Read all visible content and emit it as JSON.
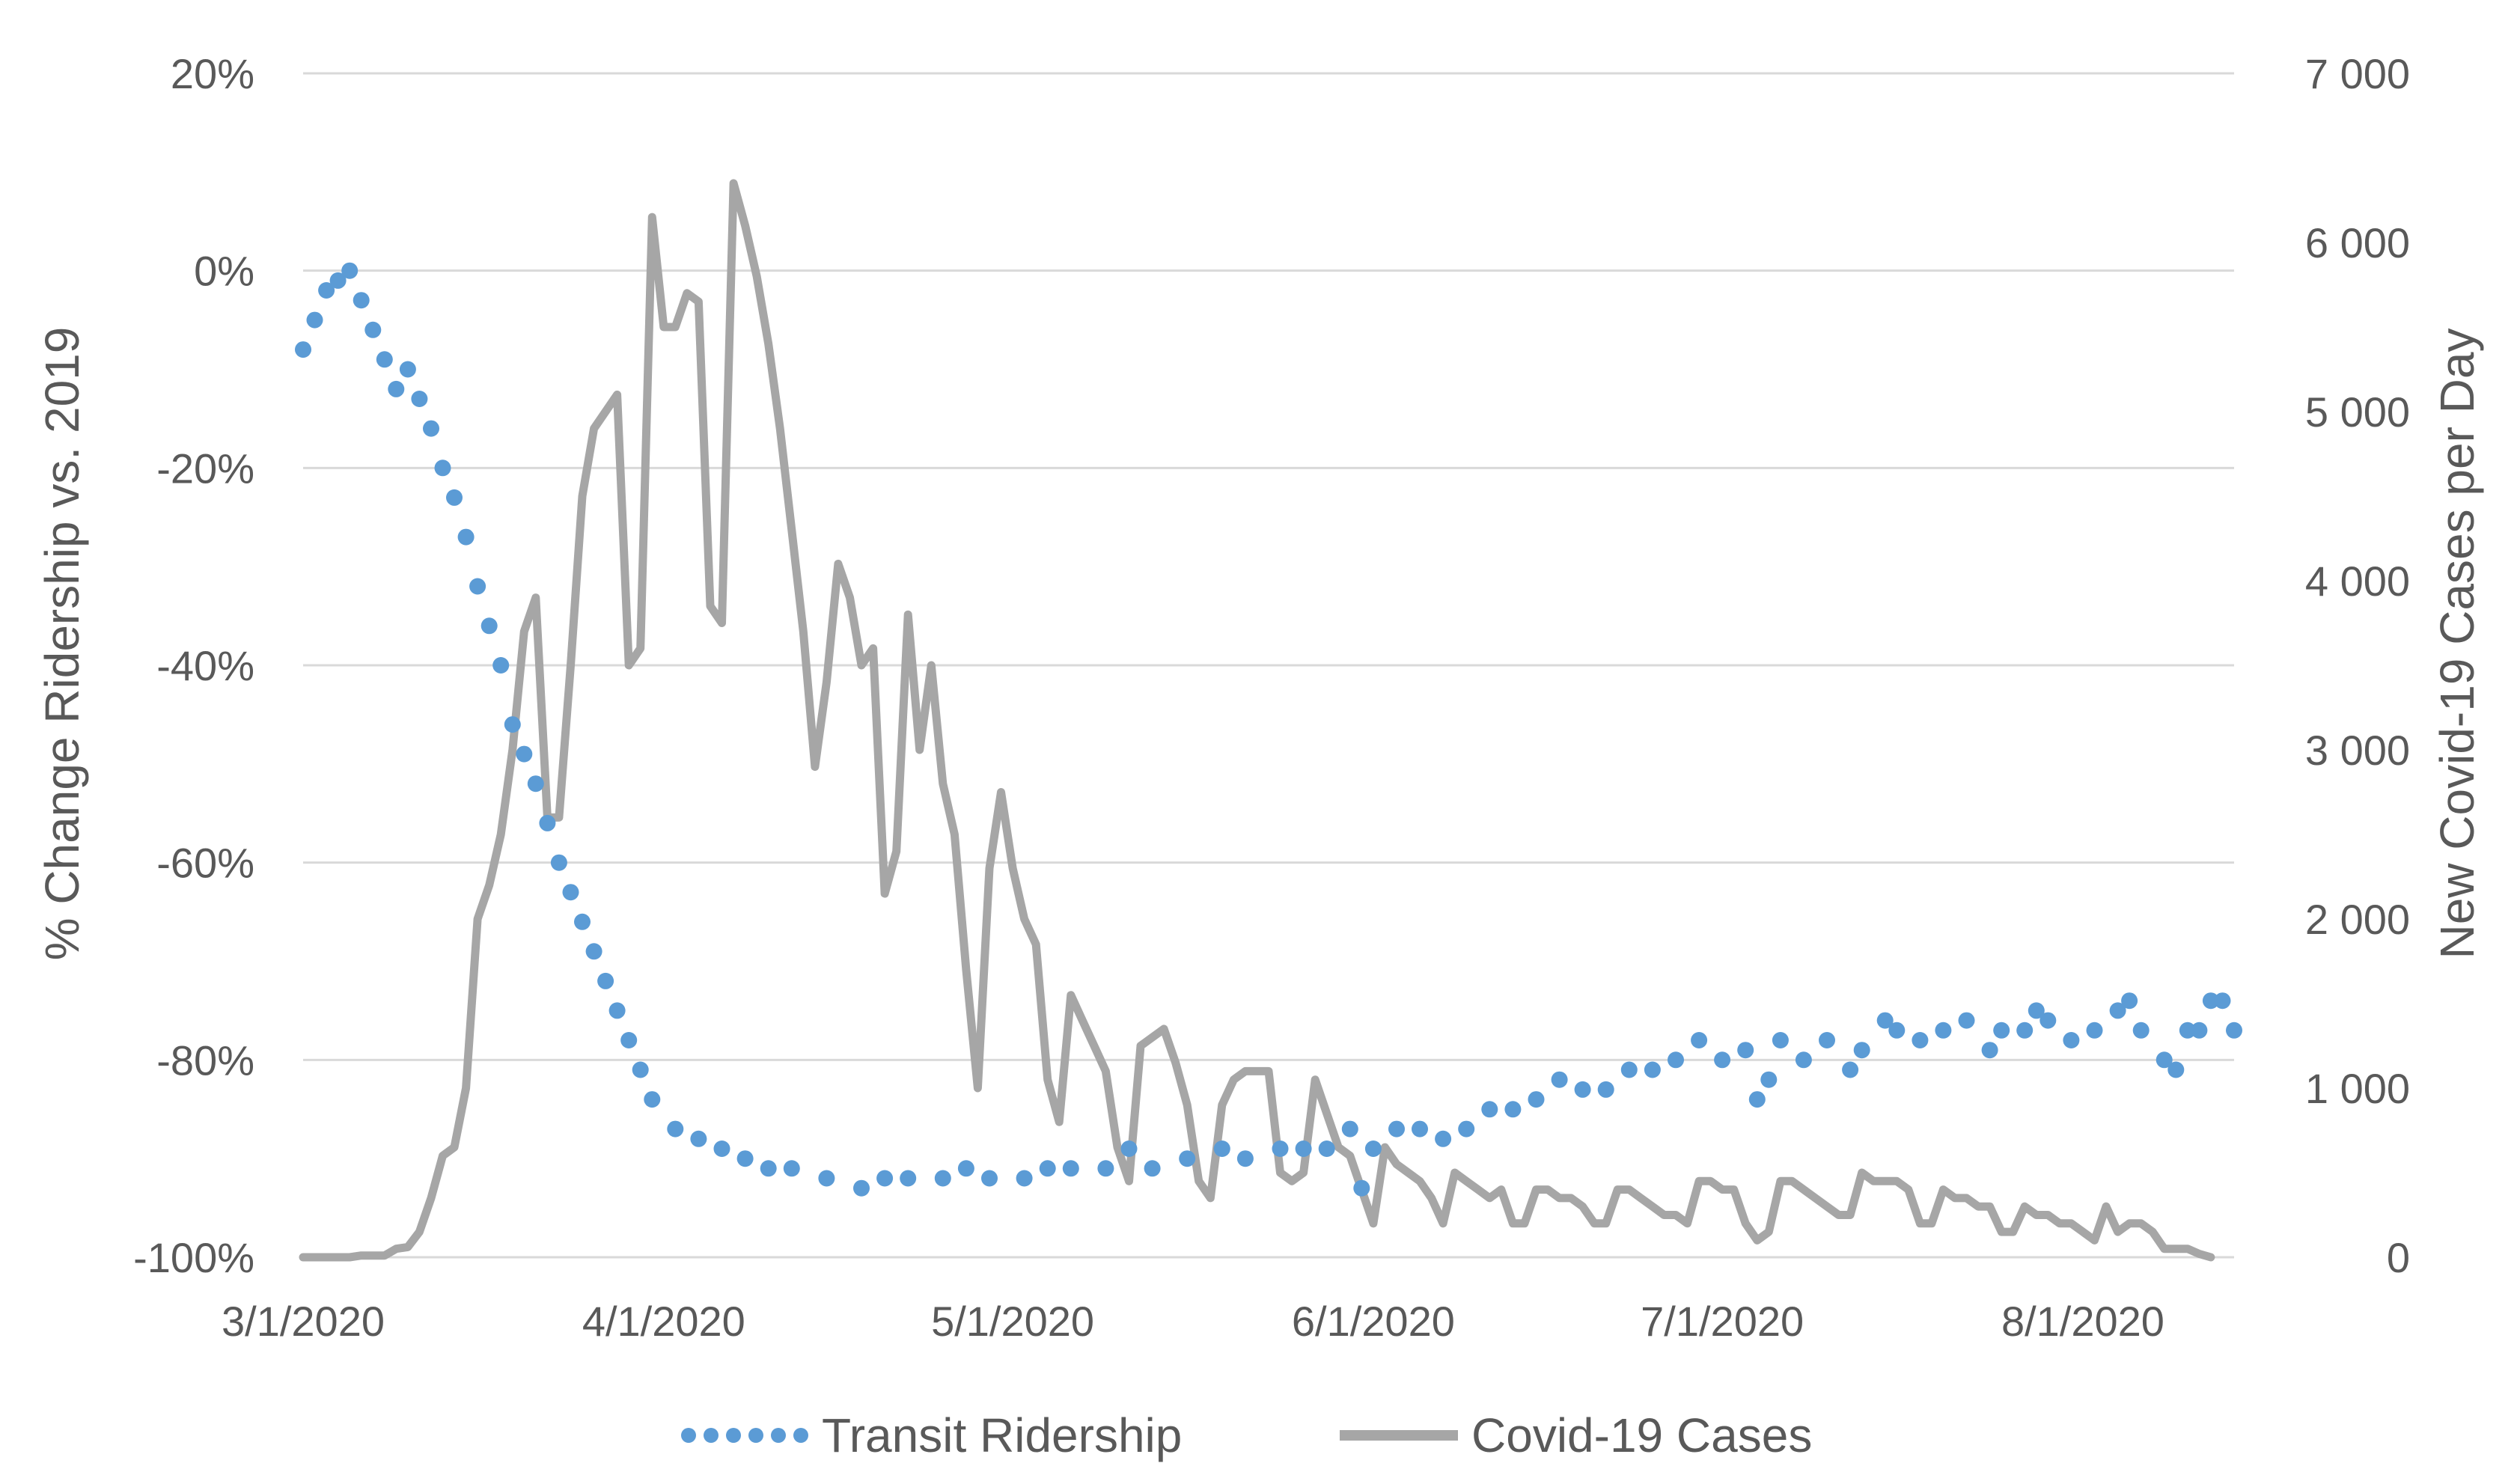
{
  "chart_data": {
    "type": "line",
    "xlabel": "",
    "x_ticks": [
      "3/1/2020",
      "4/1/2020",
      "5/1/2020",
      "6/1/2020",
      "7/1/2020",
      "8/1/2020"
    ],
    "x_range": [
      "2020-03-01",
      "2020-08-14"
    ],
    "y_left": {
      "label": "% Change Ridership vs. 2019",
      "range": [
        -100,
        20
      ],
      "unit": "%",
      "ticks": [
        "20%",
        "0%",
        "-20%",
        "-40%",
        "-60%",
        "-80%",
        "-100%"
      ],
      "tick_values": [
        20,
        0,
        -20,
        -40,
        -60,
        -80,
        -100
      ]
    },
    "y_right": {
      "label": "New Covid-19 Cases per Day",
      "range": [
        0,
        7000
      ],
      "ticks": [
        "7 000",
        "6 000",
        "5 000",
        "4 000",
        "3 000",
        "2 000",
        "1 000",
        "0"
      ],
      "tick_values": [
        7000,
        6000,
        5000,
        4000,
        3000,
        2000,
        1000,
        0
      ]
    },
    "grid": true,
    "legend_position": "bottom",
    "series": [
      {
        "name": "Transit Ridership",
        "axis": "left",
        "style": "dotted",
        "color": "#5b9bd5",
        "points": [
          [
            "2020-03-01",
            -8
          ],
          [
            "2020-03-02",
            -5
          ],
          [
            "2020-03-03",
            -2
          ],
          [
            "2020-03-04",
            -1
          ],
          [
            "2020-03-05",
            0
          ],
          [
            "2020-03-06",
            -3
          ],
          [
            "2020-03-07",
            -6
          ],
          [
            "2020-03-08",
            -9
          ],
          [
            "2020-03-09",
            -12
          ],
          [
            "2020-03-10",
            -10
          ],
          [
            "2020-03-11",
            -13
          ],
          [
            "2020-03-12",
            -16
          ],
          [
            "2020-03-13",
            -20
          ],
          [
            "2020-03-14",
            -23
          ],
          [
            "2020-03-15",
            -27
          ],
          [
            "2020-03-16",
            -32
          ],
          [
            "2020-03-17",
            -36
          ],
          [
            "2020-03-18",
            -40
          ],
          [
            "2020-03-19",
            -46
          ],
          [
            "2020-03-20",
            -49
          ],
          [
            "2020-03-21",
            -52
          ],
          [
            "2020-03-22",
            -56
          ],
          [
            "2020-03-23",
            -60
          ],
          [
            "2020-03-24",
            -63
          ],
          [
            "2020-03-25",
            -66
          ],
          [
            "2020-03-26",
            -69
          ],
          [
            "2020-03-27",
            -72
          ],
          [
            "2020-03-28",
            -75
          ],
          [
            "2020-03-29",
            -78
          ],
          [
            "2020-03-30",
            -81
          ],
          [
            "2020-03-31",
            -84
          ],
          [
            "2020-04-02",
            -87
          ],
          [
            "2020-04-04",
            -88
          ],
          [
            "2020-04-06",
            -89
          ],
          [
            "2020-04-08",
            -90
          ],
          [
            "2020-04-10",
            -91
          ],
          [
            "2020-04-12",
            -91
          ],
          [
            "2020-04-15",
            -92
          ],
          [
            "2020-04-18",
            -93
          ],
          [
            "2020-04-20",
            -92
          ],
          [
            "2020-04-22",
            -92
          ],
          [
            "2020-04-25",
            -92
          ],
          [
            "2020-04-27",
            -91
          ],
          [
            "2020-04-29",
            -92
          ],
          [
            "2020-05-02",
            -92
          ],
          [
            "2020-05-04",
            -91
          ],
          [
            "2020-05-06",
            -91
          ],
          [
            "2020-05-09",
            -91
          ],
          [
            "2020-05-11",
            -89
          ],
          [
            "2020-05-13",
            -91
          ],
          [
            "2020-05-16",
            -90
          ],
          [
            "2020-05-19",
            -89
          ],
          [
            "2020-05-21",
            -90
          ],
          [
            "2020-05-24",
            -89
          ],
          [
            "2020-05-26",
            -89
          ],
          [
            "2020-05-28",
            -89
          ],
          [
            "2020-05-30",
            -87
          ],
          [
            "2020-05-31",
            -93
          ],
          [
            "2020-06-01",
            -89
          ],
          [
            "2020-06-03",
            -87
          ],
          [
            "2020-06-05",
            -87
          ],
          [
            "2020-06-07",
            -88
          ],
          [
            "2020-06-09",
            -87
          ],
          [
            "2020-06-11",
            -85
          ],
          [
            "2020-06-13",
            -85
          ],
          [
            "2020-06-15",
            -84
          ],
          [
            "2020-06-17",
            -82
          ],
          [
            "2020-06-19",
            -83
          ],
          [
            "2020-06-21",
            -83
          ],
          [
            "2020-06-23",
            -81
          ],
          [
            "2020-06-25",
            -81
          ],
          [
            "2020-06-27",
            -80
          ],
          [
            "2020-06-29",
            -78
          ],
          [
            "2020-07-01",
            -80
          ],
          [
            "2020-07-03",
            -79
          ],
          [
            "2020-07-04",
            -84
          ],
          [
            "2020-07-05",
            -82
          ],
          [
            "2020-07-06",
            -78
          ],
          [
            "2020-07-08",
            -80
          ],
          [
            "2020-07-10",
            -78
          ],
          [
            "2020-07-12",
            -81
          ],
          [
            "2020-07-13",
            -79
          ],
          [
            "2020-07-15",
            -76
          ],
          [
            "2020-07-16",
            -77
          ],
          [
            "2020-07-18",
            -78
          ],
          [
            "2020-07-20",
            -77
          ],
          [
            "2020-07-22",
            -76
          ],
          [
            "2020-07-24",
            -79
          ],
          [
            "2020-07-25",
            -77
          ],
          [
            "2020-07-27",
            -77
          ],
          [
            "2020-07-28",
            -75
          ],
          [
            "2020-07-29",
            -76
          ],
          [
            "2020-07-31",
            -78
          ],
          [
            "2020-08-02",
            -77
          ],
          [
            "2020-08-04",
            -75
          ],
          [
            "2020-08-05",
            -74
          ],
          [
            "2020-08-06",
            -77
          ],
          [
            "2020-08-08",
            -80
          ],
          [
            "2020-08-09",
            -81
          ],
          [
            "2020-08-10",
            -77
          ],
          [
            "2020-08-11",
            -77
          ],
          [
            "2020-08-12",
            -74
          ],
          [
            "2020-08-13",
            -74
          ],
          [
            "2020-08-14",
            -77
          ]
        ]
      },
      {
        "name": "Covid-19 Cases",
        "axis": "right",
        "style": "solid",
        "color": "#a6a6a6",
        "points": [
          [
            "2020-03-01",
            0
          ],
          [
            "2020-03-05",
            0
          ],
          [
            "2020-03-06",
            10
          ],
          [
            "2020-03-08",
            10
          ],
          [
            "2020-03-09",
            50
          ],
          [
            "2020-03-10",
            60
          ],
          [
            "2020-03-11",
            150
          ],
          [
            "2020-03-12",
            350
          ],
          [
            "2020-03-13",
            600
          ],
          [
            "2020-03-14",
            650
          ],
          [
            "2020-03-15",
            1000
          ],
          [
            "2020-03-16",
            2000
          ],
          [
            "2020-03-17",
            2200
          ],
          [
            "2020-03-18",
            2500
          ],
          [
            "2020-03-19",
            3000
          ],
          [
            "2020-03-20",
            3700
          ],
          [
            "2020-03-21",
            3900
          ],
          [
            "2020-03-22",
            2600
          ],
          [
            "2020-03-23",
            2600
          ],
          [
            "2020-03-24",
            3500
          ],
          [
            "2020-03-25",
            4500
          ],
          [
            "2020-03-26",
            4900
          ],
          [
            "2020-03-27",
            5000
          ],
          [
            "2020-03-28",
            5100
          ],
          [
            "2020-03-29",
            3500
          ],
          [
            "2020-03-30",
            3600
          ],
          [
            "2020-03-31",
            6150
          ],
          [
            "2020-04-01",
            5500
          ],
          [
            "2020-04-02",
            5500
          ],
          [
            "2020-04-03",
            5700
          ],
          [
            "2020-04-04",
            5650
          ],
          [
            "2020-04-05",
            3850
          ],
          [
            "2020-04-06",
            3750
          ],
          [
            "2020-04-07",
            6350
          ],
          [
            "2020-04-08",
            6100
          ],
          [
            "2020-04-09",
            5800
          ],
          [
            "2020-04-10",
            5400
          ],
          [
            "2020-04-11",
            4900
          ],
          [
            "2020-04-12",
            4300
          ],
          [
            "2020-04-13",
            3700
          ],
          [
            "2020-04-14",
            2900
          ],
          [
            "2020-04-15",
            3400
          ],
          [
            "2020-04-16",
            4100
          ],
          [
            "2020-04-17",
            3900
          ],
          [
            "2020-04-18",
            3500
          ],
          [
            "2020-04-19",
            3600
          ],
          [
            "2020-04-20",
            2150
          ],
          [
            "2020-04-21",
            2400
          ],
          [
            "2020-04-22",
            3800
          ],
          [
            "2020-04-23",
            3000
          ],
          [
            "2020-04-24",
            3500
          ],
          [
            "2020-04-25",
            2800
          ],
          [
            "2020-04-26",
            2500
          ],
          [
            "2020-04-27",
            1700
          ],
          [
            "2020-04-28",
            1000
          ],
          [
            "2020-04-29",
            2300
          ],
          [
            "2020-04-30",
            2750
          ],
          [
            "2020-05-01",
            2300
          ],
          [
            "2020-05-02",
            2000
          ],
          [
            "2020-05-03",
            1850
          ],
          [
            "2020-05-04",
            1050
          ],
          [
            "2020-05-05",
            800
          ],
          [
            "2020-05-06",
            1550
          ],
          [
            "2020-05-07",
            1400
          ],
          [
            "2020-05-08",
            1250
          ],
          [
            "2020-05-09",
            1100
          ],
          [
            "2020-05-10",
            650
          ],
          [
            "2020-05-11",
            450
          ],
          [
            "2020-05-12",
            1250
          ],
          [
            "2020-05-13",
            1300
          ],
          [
            "2020-05-14",
            1350
          ],
          [
            "2020-05-15",
            1150
          ],
          [
            "2020-05-16",
            900
          ],
          [
            "2020-05-17",
            450
          ],
          [
            "2020-05-18",
            350
          ],
          [
            "2020-05-19",
            900
          ],
          [
            "2020-05-20",
            1050
          ],
          [
            "2020-05-21",
            1100
          ],
          [
            "2020-05-22",
            1100
          ],
          [
            "2020-05-23",
            1100
          ],
          [
            "2020-05-24",
            500
          ],
          [
            "2020-05-25",
            450
          ],
          [
            "2020-05-26",
            500
          ],
          [
            "2020-05-27",
            1050
          ],
          [
            "2020-05-28",
            850
          ],
          [
            "2020-05-29",
            650
          ],
          [
            "2020-05-30",
            600
          ],
          [
            "2020-05-31",
            400
          ],
          [
            "2020-06-01",
            200
          ],
          [
            "2020-06-02",
            650
          ],
          [
            "2020-06-03",
            550
          ],
          [
            "2020-06-04",
            500
          ],
          [
            "2020-06-05",
            450
          ],
          [
            "2020-06-06",
            350
          ],
          [
            "2020-06-07",
            200
          ],
          [
            "2020-06-08",
            500
          ],
          [
            "2020-06-09",
            450
          ],
          [
            "2020-06-10",
            400
          ],
          [
            "2020-06-11",
            350
          ],
          [
            "2020-06-12",
            400
          ],
          [
            "2020-06-13",
            200
          ],
          [
            "2020-06-14",
            200
          ],
          [
            "2020-06-15",
            400
          ],
          [
            "2020-06-16",
            400
          ],
          [
            "2020-06-17",
            350
          ],
          [
            "2020-06-18",
            350
          ],
          [
            "2020-06-19",
            300
          ],
          [
            "2020-06-20",
            200
          ],
          [
            "2020-06-21",
            200
          ],
          [
            "2020-06-22",
            400
          ],
          [
            "2020-06-23",
            400
          ],
          [
            "2020-06-24",
            350
          ],
          [
            "2020-06-25",
            300
          ],
          [
            "2020-06-26",
            250
          ],
          [
            "2020-06-27",
            250
          ],
          [
            "2020-06-28",
            200
          ],
          [
            "2020-06-29",
            450
          ],
          [
            "2020-06-30",
            450
          ],
          [
            "2020-07-01",
            400
          ],
          [
            "2020-07-02",
            400
          ],
          [
            "2020-07-03",
            200
          ],
          [
            "2020-07-04",
            100
          ],
          [
            "2020-07-05",
            150
          ],
          [
            "2020-07-06",
            450
          ],
          [
            "2020-07-07",
            450
          ],
          [
            "2020-07-08",
            400
          ],
          [
            "2020-07-09",
            350
          ],
          [
            "2020-07-10",
            300
          ],
          [
            "2020-07-11",
            250
          ],
          [
            "2020-07-12",
            250
          ],
          [
            "2020-07-13",
            500
          ],
          [
            "2020-07-14",
            450
          ],
          [
            "2020-07-15",
            450
          ],
          [
            "2020-07-16",
            450
          ],
          [
            "2020-07-17",
            400
          ],
          [
            "2020-07-18",
            200
          ],
          [
            "2020-07-19",
            200
          ],
          [
            "2020-07-20",
            400
          ],
          [
            "2020-07-21",
            350
          ],
          [
            "2020-07-22",
            350
          ],
          [
            "2020-07-23",
            300
          ],
          [
            "2020-07-24",
            300
          ],
          [
            "2020-07-25",
            150
          ],
          [
            "2020-07-26",
            150
          ],
          [
            "2020-07-27",
            300
          ],
          [
            "2020-07-28",
            250
          ],
          [
            "2020-07-29",
            250
          ],
          [
            "2020-07-30",
            200
          ],
          [
            "2020-07-31",
            200
          ],
          [
            "2020-08-01",
            150
          ],
          [
            "2020-08-02",
            100
          ],
          [
            "2020-08-03",
            300
          ],
          [
            "2020-08-04",
            150
          ],
          [
            "2020-08-05",
            200
          ],
          [
            "2020-08-06",
            200
          ],
          [
            "2020-08-07",
            150
          ],
          [
            "2020-08-08",
            50
          ],
          [
            "2020-08-09",
            50
          ],
          [
            "2020-08-10",
            50
          ],
          [
            "2020-08-11",
            20
          ],
          [
            "2020-08-12",
            0
          ]
        ]
      }
    ]
  }
}
